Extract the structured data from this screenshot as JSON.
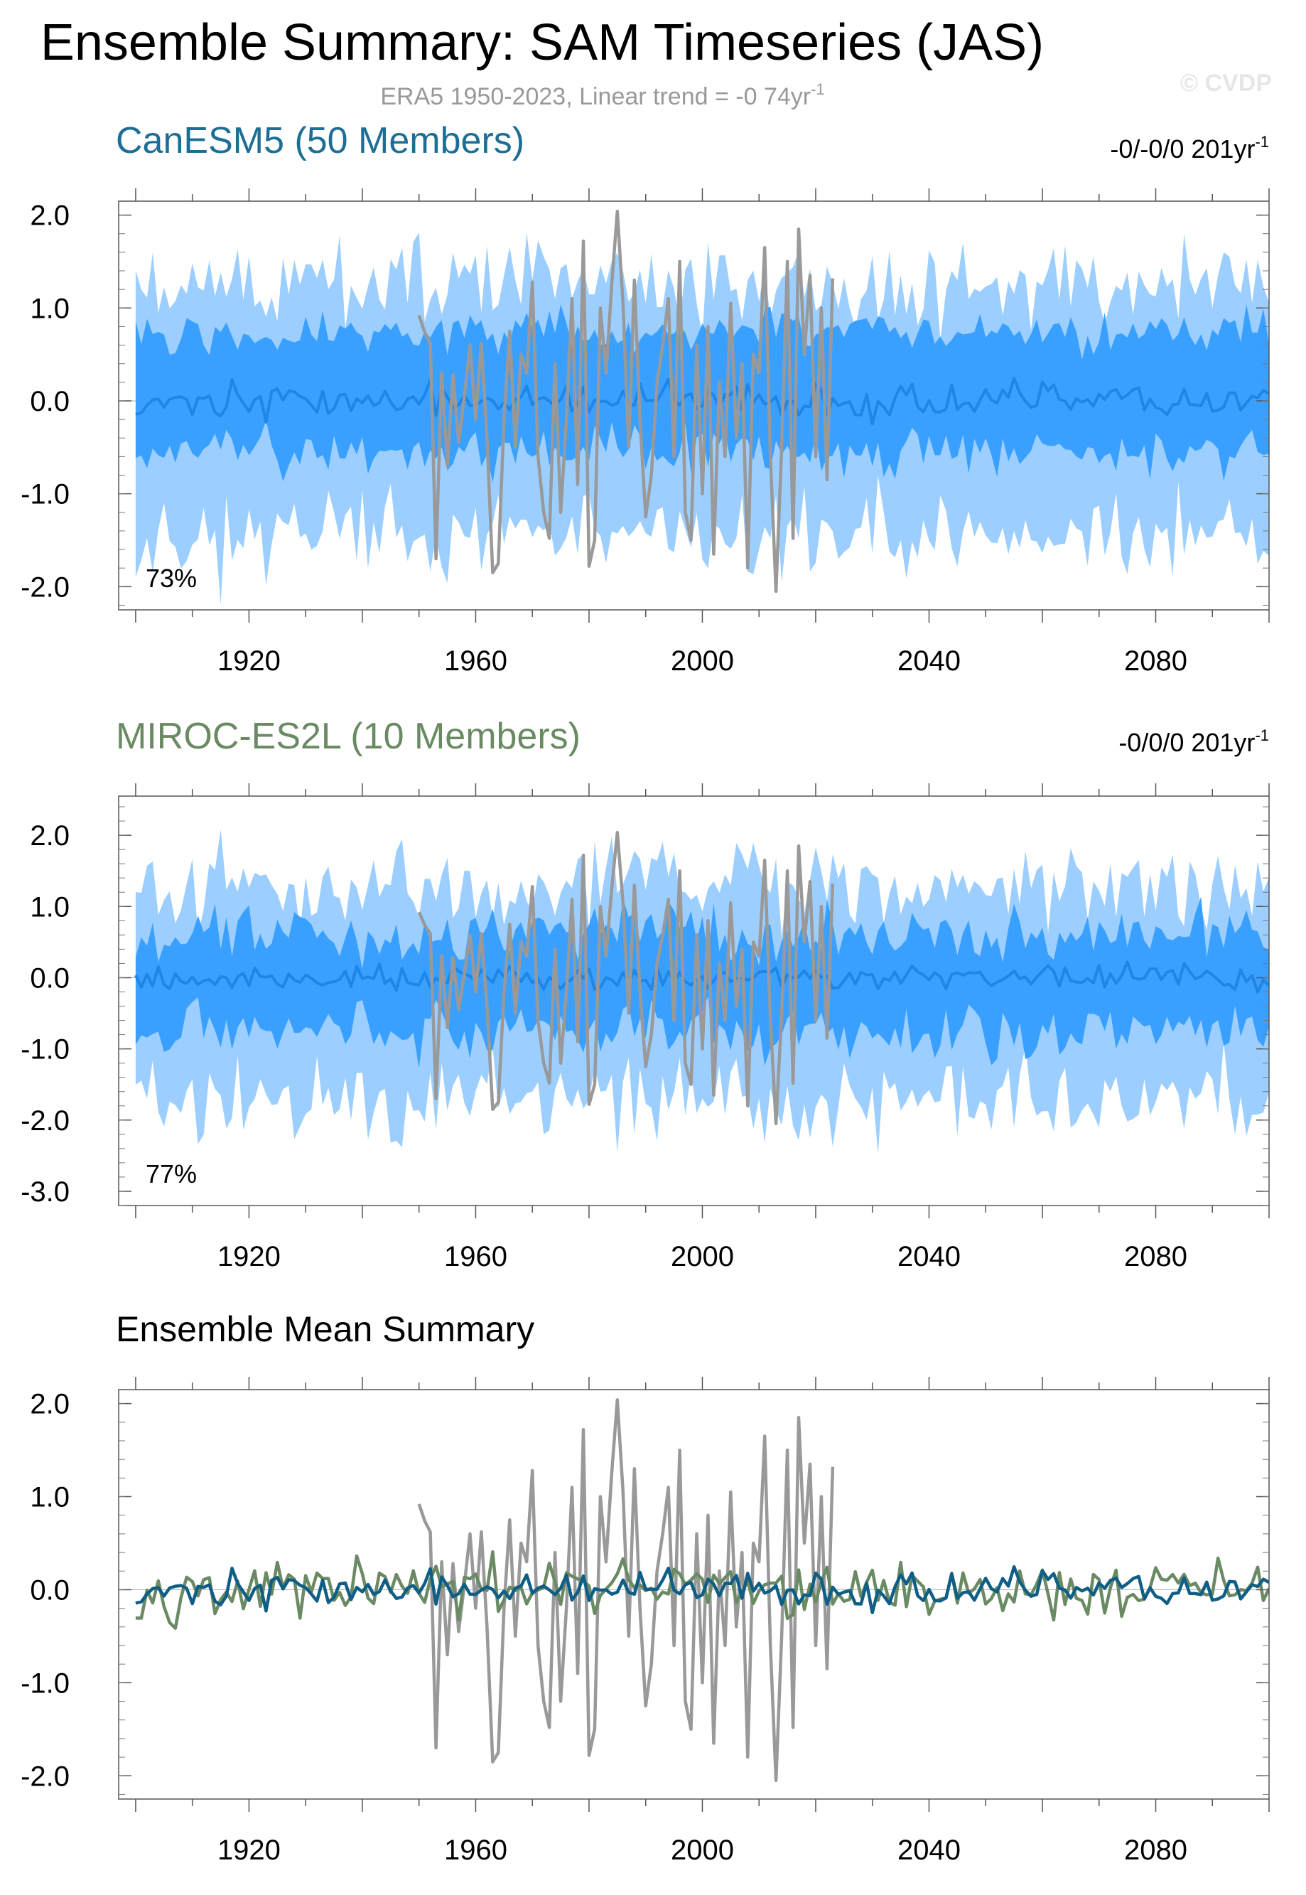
{
  "title": "Ensemble Summary: SAM Timeseries (JAS)",
  "subtitle": "ERA5 1950-2023, Linear trend = -0 74yr",
  "subtitle_sup": "-1",
  "watermark": "© CVDP",
  "colors": {
    "obs": "#999999",
    "canesm_title": "#1c6e96",
    "miroc_title": "#6a8a63",
    "canesm_line": "#0f5e85",
    "miroc_line": "#6a8a63",
    "band_outer": "#9ccfff",
    "band_inner": "#3aa0ff",
    "ens_mean": "#1f86e6",
    "text": "#000000",
    "grid": "#bdbdbd"
  },
  "chart_data": [
    {
      "type": "area",
      "panel": "canesm5",
      "title": "CanESM5 (50 Members)",
      "trend_text": "-0/-0/0 201yr",
      "trend_sup": "-1",
      "pct_label": "73%",
      "xlim": [
        1897,
        2100
      ],
      "ylim": [
        -2.25,
        2.15
      ],
      "yticks": [
        2.0,
        1.0,
        0.0,
        -1.0,
        -2.0
      ],
      "ytick_labels": [
        "2.0",
        "1.0",
        "0.0",
        "-1.0",
        "-2.0"
      ],
      "xticks": [
        1920,
        1960,
        2000,
        2040,
        2080
      ],
      "series": [
        {
          "name": "ensemble 10-90% range",
          "lo": -1.45,
          "hi": 1.25,
          "variability": 0.35
        },
        {
          "name": "ensemble 25-75% range",
          "lo": -0.55,
          "hi": 0.75,
          "variability": 0.18
        },
        {
          "name": "ensemble mean",
          "x_start": 1900,
          "x_end": 2100,
          "amplitude": 0.13
        },
        {
          "name": "ERA5 observed",
          "x_start": 1950,
          "x_end": 2023
        }
      ]
    },
    {
      "type": "area",
      "panel": "miroc",
      "title": "MIROC-ES2L (10 Members)",
      "trend_text": "-0/0/0 201yr",
      "trend_sup": "-1",
      "pct_label": "77%",
      "xlim": [
        1897,
        2100
      ],
      "ylim": [
        -3.2,
        2.55
      ],
      "yticks": [
        2.0,
        1.0,
        0.0,
        -1.0,
        -2.0,
        -3.0
      ],
      "ytick_labels": [
        "2.0",
        "1.0",
        "0.0",
        "-1.0",
        "-2.0",
        "-3.0"
      ],
      "xticks": [
        1920,
        1960,
        2000,
        2040,
        2080
      ],
      "series": [
        {
          "name": "ensemble 10-90% range",
          "lo": -1.75,
          "hi": 1.3,
          "variability": 0.45
        },
        {
          "name": "ensemble 25-75% range",
          "lo": -0.75,
          "hi": 0.65,
          "variability": 0.3
        },
        {
          "name": "ensemble mean",
          "x_start": 1900,
          "x_end": 2100,
          "amplitude": 0.13
        },
        {
          "name": "ERA5 observed",
          "x_start": 1950,
          "x_end": 2023
        }
      ]
    },
    {
      "type": "line",
      "panel": "summary",
      "title": "Ensemble Mean Summary",
      "xlim": [
        1897,
        2100
      ],
      "ylim": [
        -2.25,
        2.15
      ],
      "yticks": [
        2.0,
        1.0,
        0.0,
        -1.0,
        -2.0
      ],
      "ytick_labels": [
        "2.0",
        "1.0",
        "0.0",
        "-1.0",
        "-2.0"
      ],
      "xticks": [
        1920,
        1960,
        2000,
        2040,
        2080
      ],
      "series": [
        {
          "name": "CanESM5 ensemble mean",
          "color_key": "canesm_line"
        },
        {
          "name": "MIROC-ES2L ensemble mean",
          "color_key": "miroc_line"
        },
        {
          "name": "ERA5 observed",
          "color_key": "obs"
        }
      ]
    }
  ],
  "obs": {
    "x_start": 1950,
    "values": [
      0.92,
      0.74,
      0.62,
      -1.7,
      0.3,
      -0.7,
      0.28,
      -0.45,
      0.05,
      0.6,
      -0.2,
      0.62,
      -0.4,
      -1.85,
      -1.75,
      -0.2,
      0.75,
      -0.5,
      0.5,
      0.3,
      1.28,
      -0.6,
      -1.2,
      -1.48,
      0.4,
      -1.2,
      -0.2,
      1.1,
      -0.9,
      1.72,
      -1.78,
      -1.5,
      1.0,
      0.3,
      1.25,
      2.04,
      1.05,
      -0.5,
      1.3,
      -0.2,
      -1.25,
      -0.8,
      0.2,
      0.6,
      1.1,
      -0.6,
      1.5,
      -1.2,
      -1.5,
      0.6,
      -1.0,
      0.8,
      -1.65,
      0.2,
      -0.6,
      1.05,
      -0.4,
      0.4,
      -1.8,
      0.5,
      0.3,
      1.65,
      -0.6,
      -2.05,
      -0.5,
      1.5,
      -1.48,
      1.85,
      0.5,
      1.35,
      -0.6,
      1.0,
      -0.85,
      1.32
    ]
  }
}
